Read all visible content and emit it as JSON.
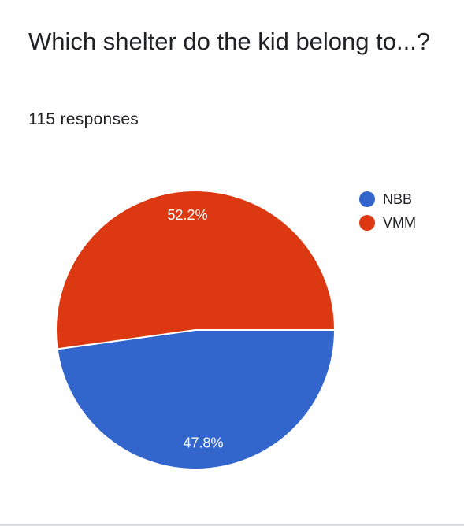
{
  "question": "Which shelter do the kid belong to...?",
  "response_count": "115 responses",
  "chart_data": {
    "type": "pie",
    "title": "",
    "slices": [
      {
        "name": "NBB",
        "value": 47.8,
        "label": "47.8%",
        "color": "#3366cc"
      },
      {
        "name": "VMM",
        "value": 52.2,
        "label": "52.2%",
        "color": "#dc3912"
      }
    ],
    "legend_position": "top-right"
  }
}
